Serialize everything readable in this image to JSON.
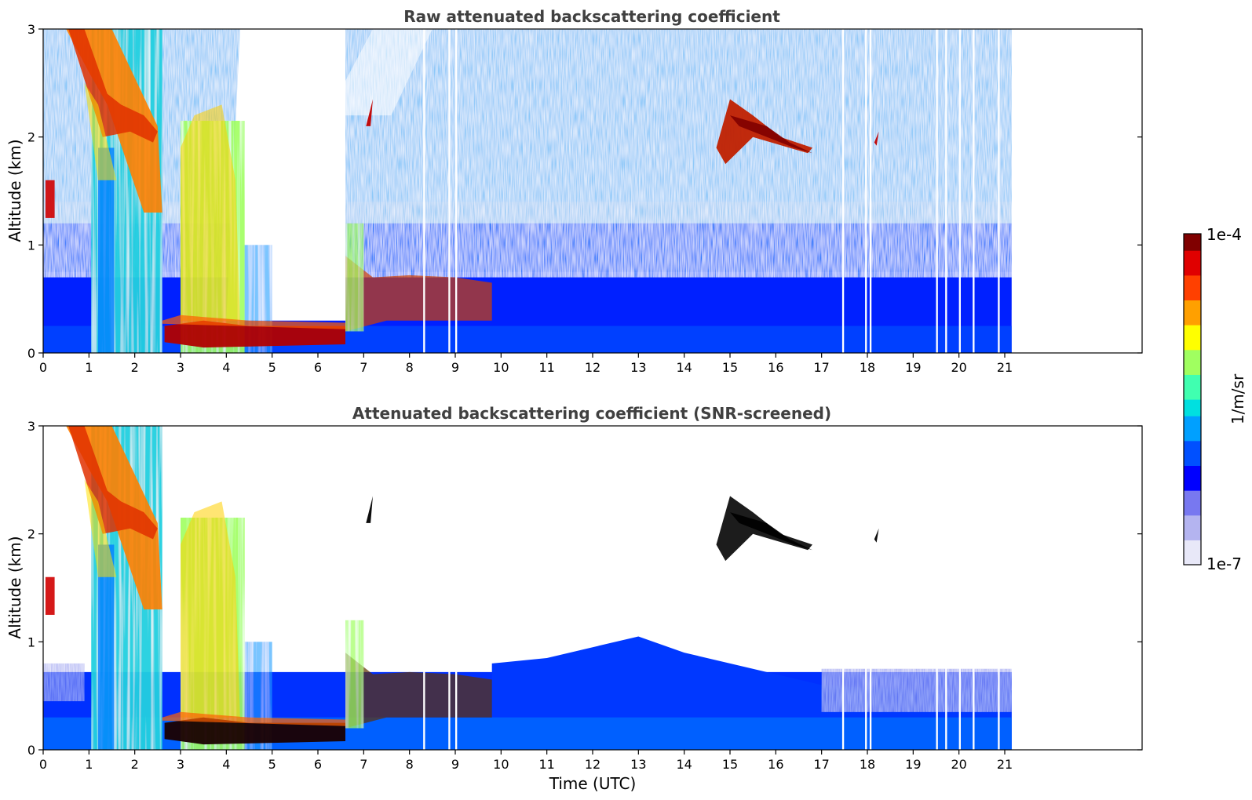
{
  "chart_data": [
    {
      "type": "heatmap",
      "title": "Raw attenuated backscattering coefficient",
      "xlabel": "",
      "ylabel": "Altitude (km)",
      "xlim": [
        0,
        24
      ],
      "ylim": [
        0,
        3
      ],
      "xticks": [
        0,
        1,
        2,
        3,
        4,
        5,
        6,
        7,
        8,
        9,
        10,
        11,
        12,
        13,
        14,
        15,
        16,
        17,
        18,
        19,
        20,
        21
      ],
      "yticks": [
        0,
        1,
        2,
        3
      ],
      "data_end_time": 21.15,
      "screened": false,
      "features": [
        {
          "name": "precipitation streaks",
          "t_start": 0.5,
          "t_end": 2.6,
          "alt_max": 3.0
        },
        {
          "name": "virga / falling streaks",
          "t_start": 3.0,
          "t_end": 4.4,
          "alt_max": 2.2
        },
        {
          "name": "low cloud layer",
          "t_start": 2.6,
          "t_end": 6.6,
          "alt_base": 0.1,
          "alt_top": 0.3
        },
        {
          "name": "boundary layer rise",
          "t_start": 6.6,
          "t_end": 9.8,
          "alt_top": 0.75
        },
        {
          "name": "elevated cloud",
          "t_start": 14.7,
          "t_end": 16.8,
          "alt_base": 1.9,
          "alt_top": 2.3
        },
        {
          "name": "small cloud 7h",
          "t": 7.1,
          "alt": 2.2
        },
        {
          "name": "small cloud 18h",
          "t": 18.2,
          "alt": 2.0
        }
      ]
    },
    {
      "type": "heatmap",
      "title": "Attenuated backscattering coefficient (SNR-screened)",
      "xlabel": "Time (UTC)",
      "ylabel": "Altitude (km)",
      "xlim": [
        0,
        24
      ],
      "ylim": [
        0,
        3
      ],
      "xticks": [
        0,
        1,
        2,
        3,
        4,
        5,
        6,
        7,
        8,
        9,
        10,
        11,
        12,
        13,
        14,
        15,
        16,
        17,
        18,
        19,
        20,
        21
      ],
      "yticks": [
        0,
        1,
        2,
        3
      ],
      "data_end_time": 21.15,
      "screened": true,
      "features": [
        {
          "name": "precipitation streaks",
          "t_start": 0.5,
          "t_end": 2.6,
          "alt_max": 3.0
        },
        {
          "name": "low cloud layer",
          "t_start": 2.6,
          "t_end": 6.6,
          "alt_base": 0.1,
          "alt_top": 0.3
        },
        {
          "name": "boundary layer",
          "t_start": 6.6,
          "t_end": 21.15,
          "alt_top": 1.0
        },
        {
          "name": "elevated cloud",
          "t_start": 14.7,
          "t_end": 16.8,
          "alt_base": 1.9,
          "alt_top": 2.3
        }
      ]
    }
  ],
  "colorbar": {
    "label": "1/m/sr",
    "max_label": "1e-4",
    "min_label": "1e-7",
    "vmin": 1e-07,
    "vmax": 0.0001,
    "scale": "log",
    "colormap": [
      "#e8e8f8",
      "#b4b4f0",
      "#7878f0",
      "#0000ff",
      "#0050ff",
      "#00a0ff",
      "#00e0e0",
      "#40ffb0",
      "#a0ff60",
      "#ffff00",
      "#ffa000",
      "#ff4000",
      "#e00000",
      "#800000"
    ]
  }
}
